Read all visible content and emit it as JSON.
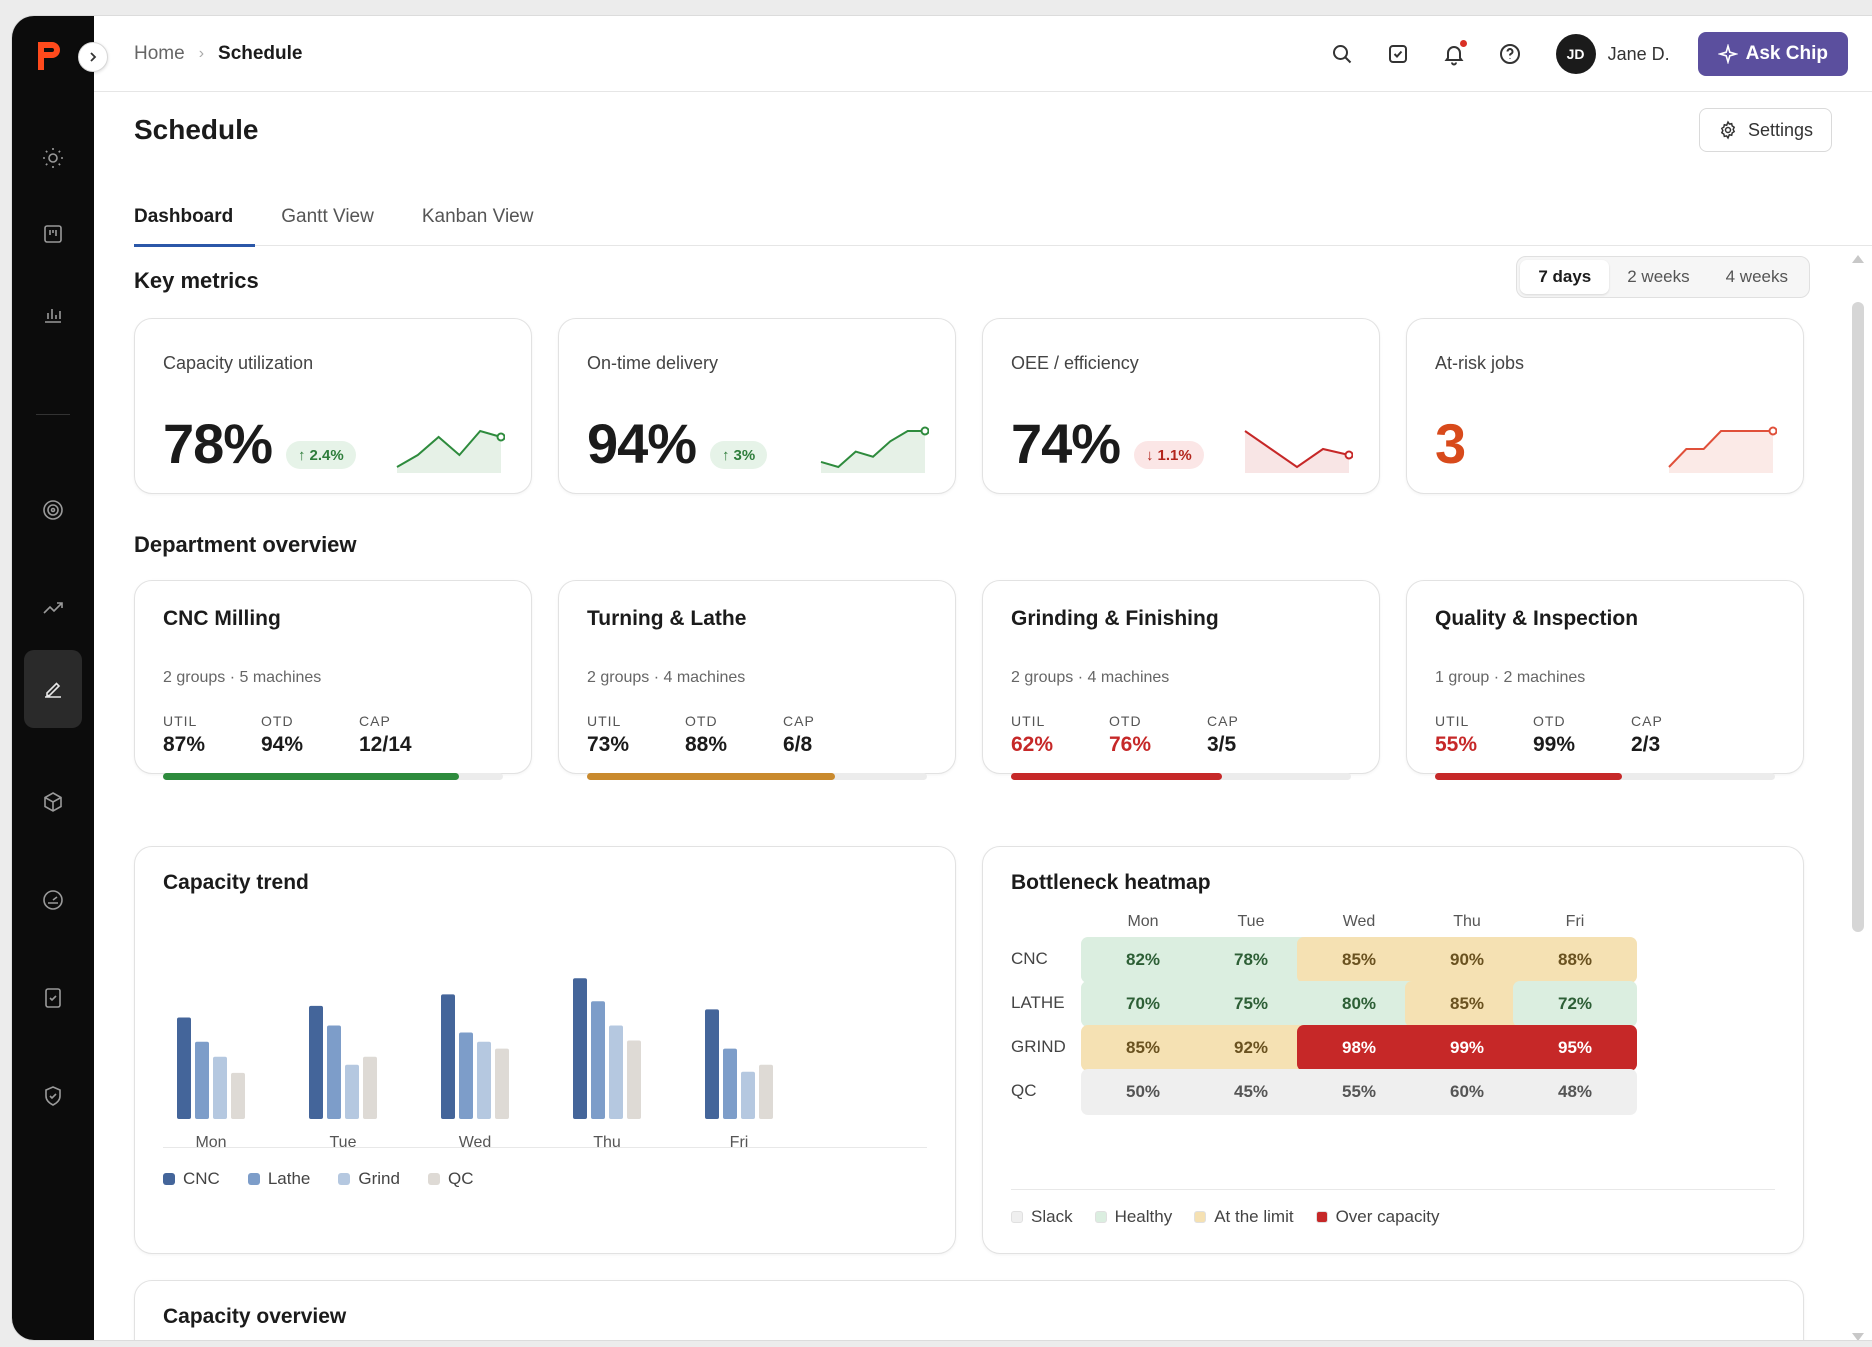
{
  "breadcrumb": {
    "home": "Home",
    "current": "Schedule"
  },
  "user": {
    "initials": "JD",
    "name": "Jane D."
  },
  "ask_button": "Ask Chip",
  "page": {
    "title": "Schedule",
    "settings_label": "Settings"
  },
  "tabs": [
    {
      "label": "Dashboard",
      "active": true
    },
    {
      "label": "Gantt View",
      "active": false
    },
    {
      "label": "Kanban View",
      "active": false
    }
  ],
  "key_metrics": {
    "title": "Key metrics",
    "ranges": [
      "7 days",
      "2 weeks",
      "4 weeks"
    ],
    "selected_range": "7 days",
    "cards": [
      {
        "label": "Capacity utilization",
        "value": "78%",
        "delta": "2.4%",
        "direction": "up",
        "trend": [
          2,
          4,
          7,
          4,
          8,
          7
        ],
        "color": "#2e8b3d"
      },
      {
        "label": "On-time delivery",
        "value": "94%",
        "delta": "3%",
        "direction": "up",
        "trend": [
          2,
          1,
          4,
          3,
          6,
          8,
          8
        ],
        "color": "#2e8b3d"
      },
      {
        "label": "OEE / efficiency",
        "value": "74%",
        "delta": "1.1%",
        "direction": "down",
        "trend": [
          8,
          5,
          2,
          5,
          4
        ],
        "color": "#c62828"
      },
      {
        "label": "At-risk jobs",
        "value": "3",
        "delta": "",
        "direction": "none",
        "trend": [
          1,
          4,
          4,
          7,
          7,
          7,
          7
        ],
        "color": "#e0503a"
      }
    ]
  },
  "departments": {
    "title": "Department overview",
    "stat_labels": {
      "util": "UTIL",
      "otd": "OTD",
      "cap": "CAP"
    },
    "items": [
      {
        "name": "CNC Milling",
        "sub": "2 groups · 5 machines",
        "util": "87%",
        "otd": "94%",
        "cap": "12/14",
        "util_bad": false,
        "otd_bad": false,
        "progress": 0.87,
        "bar_color": "#2e8b3d"
      },
      {
        "name": "Turning & Lathe",
        "sub": "2 groups · 4 machines",
        "util": "73%",
        "otd": "88%",
        "cap": "6/8",
        "util_bad": false,
        "otd_bad": false,
        "progress": 0.73,
        "bar_color": "#c98a2e"
      },
      {
        "name": "Grinding & Finishing",
        "sub": "2 groups · 4 machines",
        "util": "62%",
        "otd": "76%",
        "cap": "3/5",
        "util_bad": true,
        "otd_bad": true,
        "progress": 0.62,
        "bar_color": "#c62828"
      },
      {
        "name": "Quality & Inspection",
        "sub": "1 group · 2 machines",
        "util": "55%",
        "otd": "99%",
        "cap": "2/3",
        "util_bad": true,
        "otd_bad": false,
        "progress": 0.55,
        "bar_color": "#c62828"
      }
    ]
  },
  "chart_data": {
    "type": "bar",
    "title": "Capacity trend",
    "categories": [
      "Mon",
      "Tue",
      "Wed",
      "Thu",
      "Fri"
    ],
    "series": [
      {
        "name": "CNC",
        "color": "#44659a",
        "values": [
          88,
          98,
          108,
          122,
          95
        ]
      },
      {
        "name": "Lathe",
        "color": "#7d9dc9",
        "values": [
          67,
          81,
          75,
          102,
          61
        ]
      },
      {
        "name": "Grind",
        "color": "#b5c8e0",
        "values": [
          54,
          47,
          67,
          81,
          41
        ]
      },
      {
        "name": "QC",
        "color": "#dedad5",
        "values": [
          40,
          54,
          61,
          68,
          47
        ]
      }
    ],
    "ylim": [
      0,
      130
    ],
    "grid": false,
    "legend": "bottom-left"
  },
  "heatmap": {
    "title": "Bottleneck heatmap",
    "days": [
      "Mon",
      "Tue",
      "Wed",
      "Thu",
      "Fri"
    ],
    "rows": [
      {
        "label": "CNC",
        "cells": [
          {
            "v": "82%",
            "s": "healthy"
          },
          {
            "v": "78%",
            "s": "healthy"
          },
          {
            "v": "85%",
            "s": "limit"
          },
          {
            "v": "90%",
            "s": "limit"
          },
          {
            "v": "88%",
            "s": "limit"
          }
        ]
      },
      {
        "label": "LATHE",
        "cells": [
          {
            "v": "70%",
            "s": "healthy"
          },
          {
            "v": "75%",
            "s": "healthy"
          },
          {
            "v": "80%",
            "s": "healthy"
          },
          {
            "v": "85%",
            "s": "limit"
          },
          {
            "v": "72%",
            "s": "healthy"
          }
        ]
      },
      {
        "label": "GRIND",
        "cells": [
          {
            "v": "85%",
            "s": "limit"
          },
          {
            "v": "92%",
            "s": "limit"
          },
          {
            "v": "98%",
            "s": "over"
          },
          {
            "v": "99%",
            "s": "over"
          },
          {
            "v": "95%",
            "s": "over"
          }
        ]
      },
      {
        "label": "QC",
        "cells": [
          {
            "v": "50%",
            "s": "slack"
          },
          {
            "v": "45%",
            "s": "slack"
          },
          {
            "v": "55%",
            "s": "slack"
          },
          {
            "v": "60%",
            "s": "slack"
          },
          {
            "v": "48%",
            "s": "slack"
          }
        ]
      }
    ],
    "legend": [
      {
        "label": "Slack",
        "color": "#efefef"
      },
      {
        "label": "Healthy",
        "color": "#dbeee0"
      },
      {
        "label": "At the limit",
        "color": "#f5e1b3"
      },
      {
        "label": "Over capacity",
        "color": "#c62828"
      }
    ]
  },
  "capacity_overview": {
    "title": "Capacity overview"
  }
}
